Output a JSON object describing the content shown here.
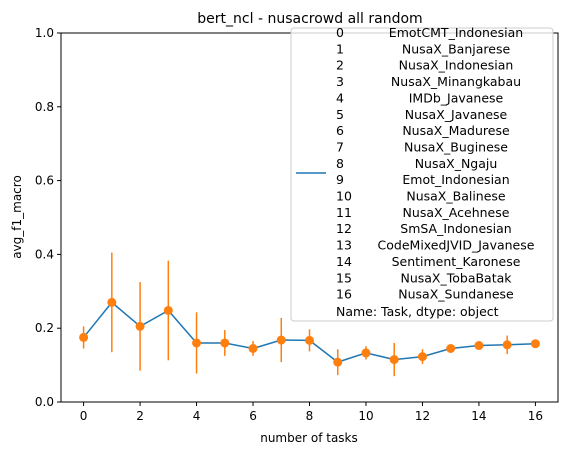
{
  "chart_data": {
    "type": "line",
    "title": "bert_ncl - nusacrowd all random",
    "xlabel": "number of tasks",
    "ylabel": "avg_f1_macro",
    "xlim": [
      -0.8,
      16.8
    ],
    "ylim": [
      0,
      1
    ],
    "x_ticks": [
      "0",
      "2",
      "4",
      "6",
      "8",
      "10",
      "12",
      "14",
      "16"
    ],
    "y_ticks": [
      "0.0",
      "0.2",
      "0.4",
      "0.6",
      "0.8",
      "1.0"
    ],
    "grid": false,
    "legend_position": "upper-right",
    "colors": {
      "line": "#1f77b4",
      "points": "#ff7f0e",
      "errorbars": "#ff7f0e"
    },
    "x": [
      0,
      1,
      2,
      3,
      4,
      5,
      6,
      7,
      8,
      9,
      10,
      11,
      12,
      13,
      14,
      15,
      16
    ],
    "series": [
      {
        "name": "0 EmotCMT_Indonesian / 1 NusaX_Banjarese / ... / 16 NusaX_Sundanese",
        "values": [
          0.175,
          0.27,
          0.205,
          0.248,
          0.16,
          0.16,
          0.145,
          0.168,
          0.167,
          0.108,
          0.133,
          0.115,
          0.123,
          0.145,
          0.153,
          0.155,
          0.158
        ],
        "error": [
          0.03,
          0.135,
          0.12,
          0.135,
          0.083,
          0.035,
          0.02,
          0.06,
          0.03,
          0.035,
          0.018,
          0.045,
          0.02,
          0.01,
          0.007,
          0.025,
          0.008
        ]
      }
    ],
    "legend": {
      "rows": [
        [
          "0",
          "EmotCMT_Indonesian"
        ],
        [
          "1",
          "NusaX_Banjarese"
        ],
        [
          "2",
          "NusaX_Indonesian"
        ],
        [
          "3",
          "NusaX_Minangkabau"
        ],
        [
          "4",
          "IMDb_Javanese"
        ],
        [
          "5",
          "NusaX_Javanese"
        ],
        [
          "6",
          "NusaX_Madurese"
        ],
        [
          "7",
          "NusaX_Buginese"
        ],
        [
          "8",
          "NusaX_Ngaju"
        ],
        [
          "9",
          "Emot_Indonesian"
        ],
        [
          "10",
          "NusaX_Balinese"
        ],
        [
          "11",
          "NusaX_Acehnese"
        ],
        [
          "12",
          "SmSA_Indonesian"
        ],
        [
          "13",
          "CodeMixedJVID_Javanese"
        ],
        [
          "14",
          "Sentiment_Karonese"
        ],
        [
          "15",
          "NusaX_TobaBatak"
        ],
        [
          "16",
          "NusaX_Sundanese"
        ]
      ],
      "footer": "Name: Task, dtype: object"
    }
  }
}
